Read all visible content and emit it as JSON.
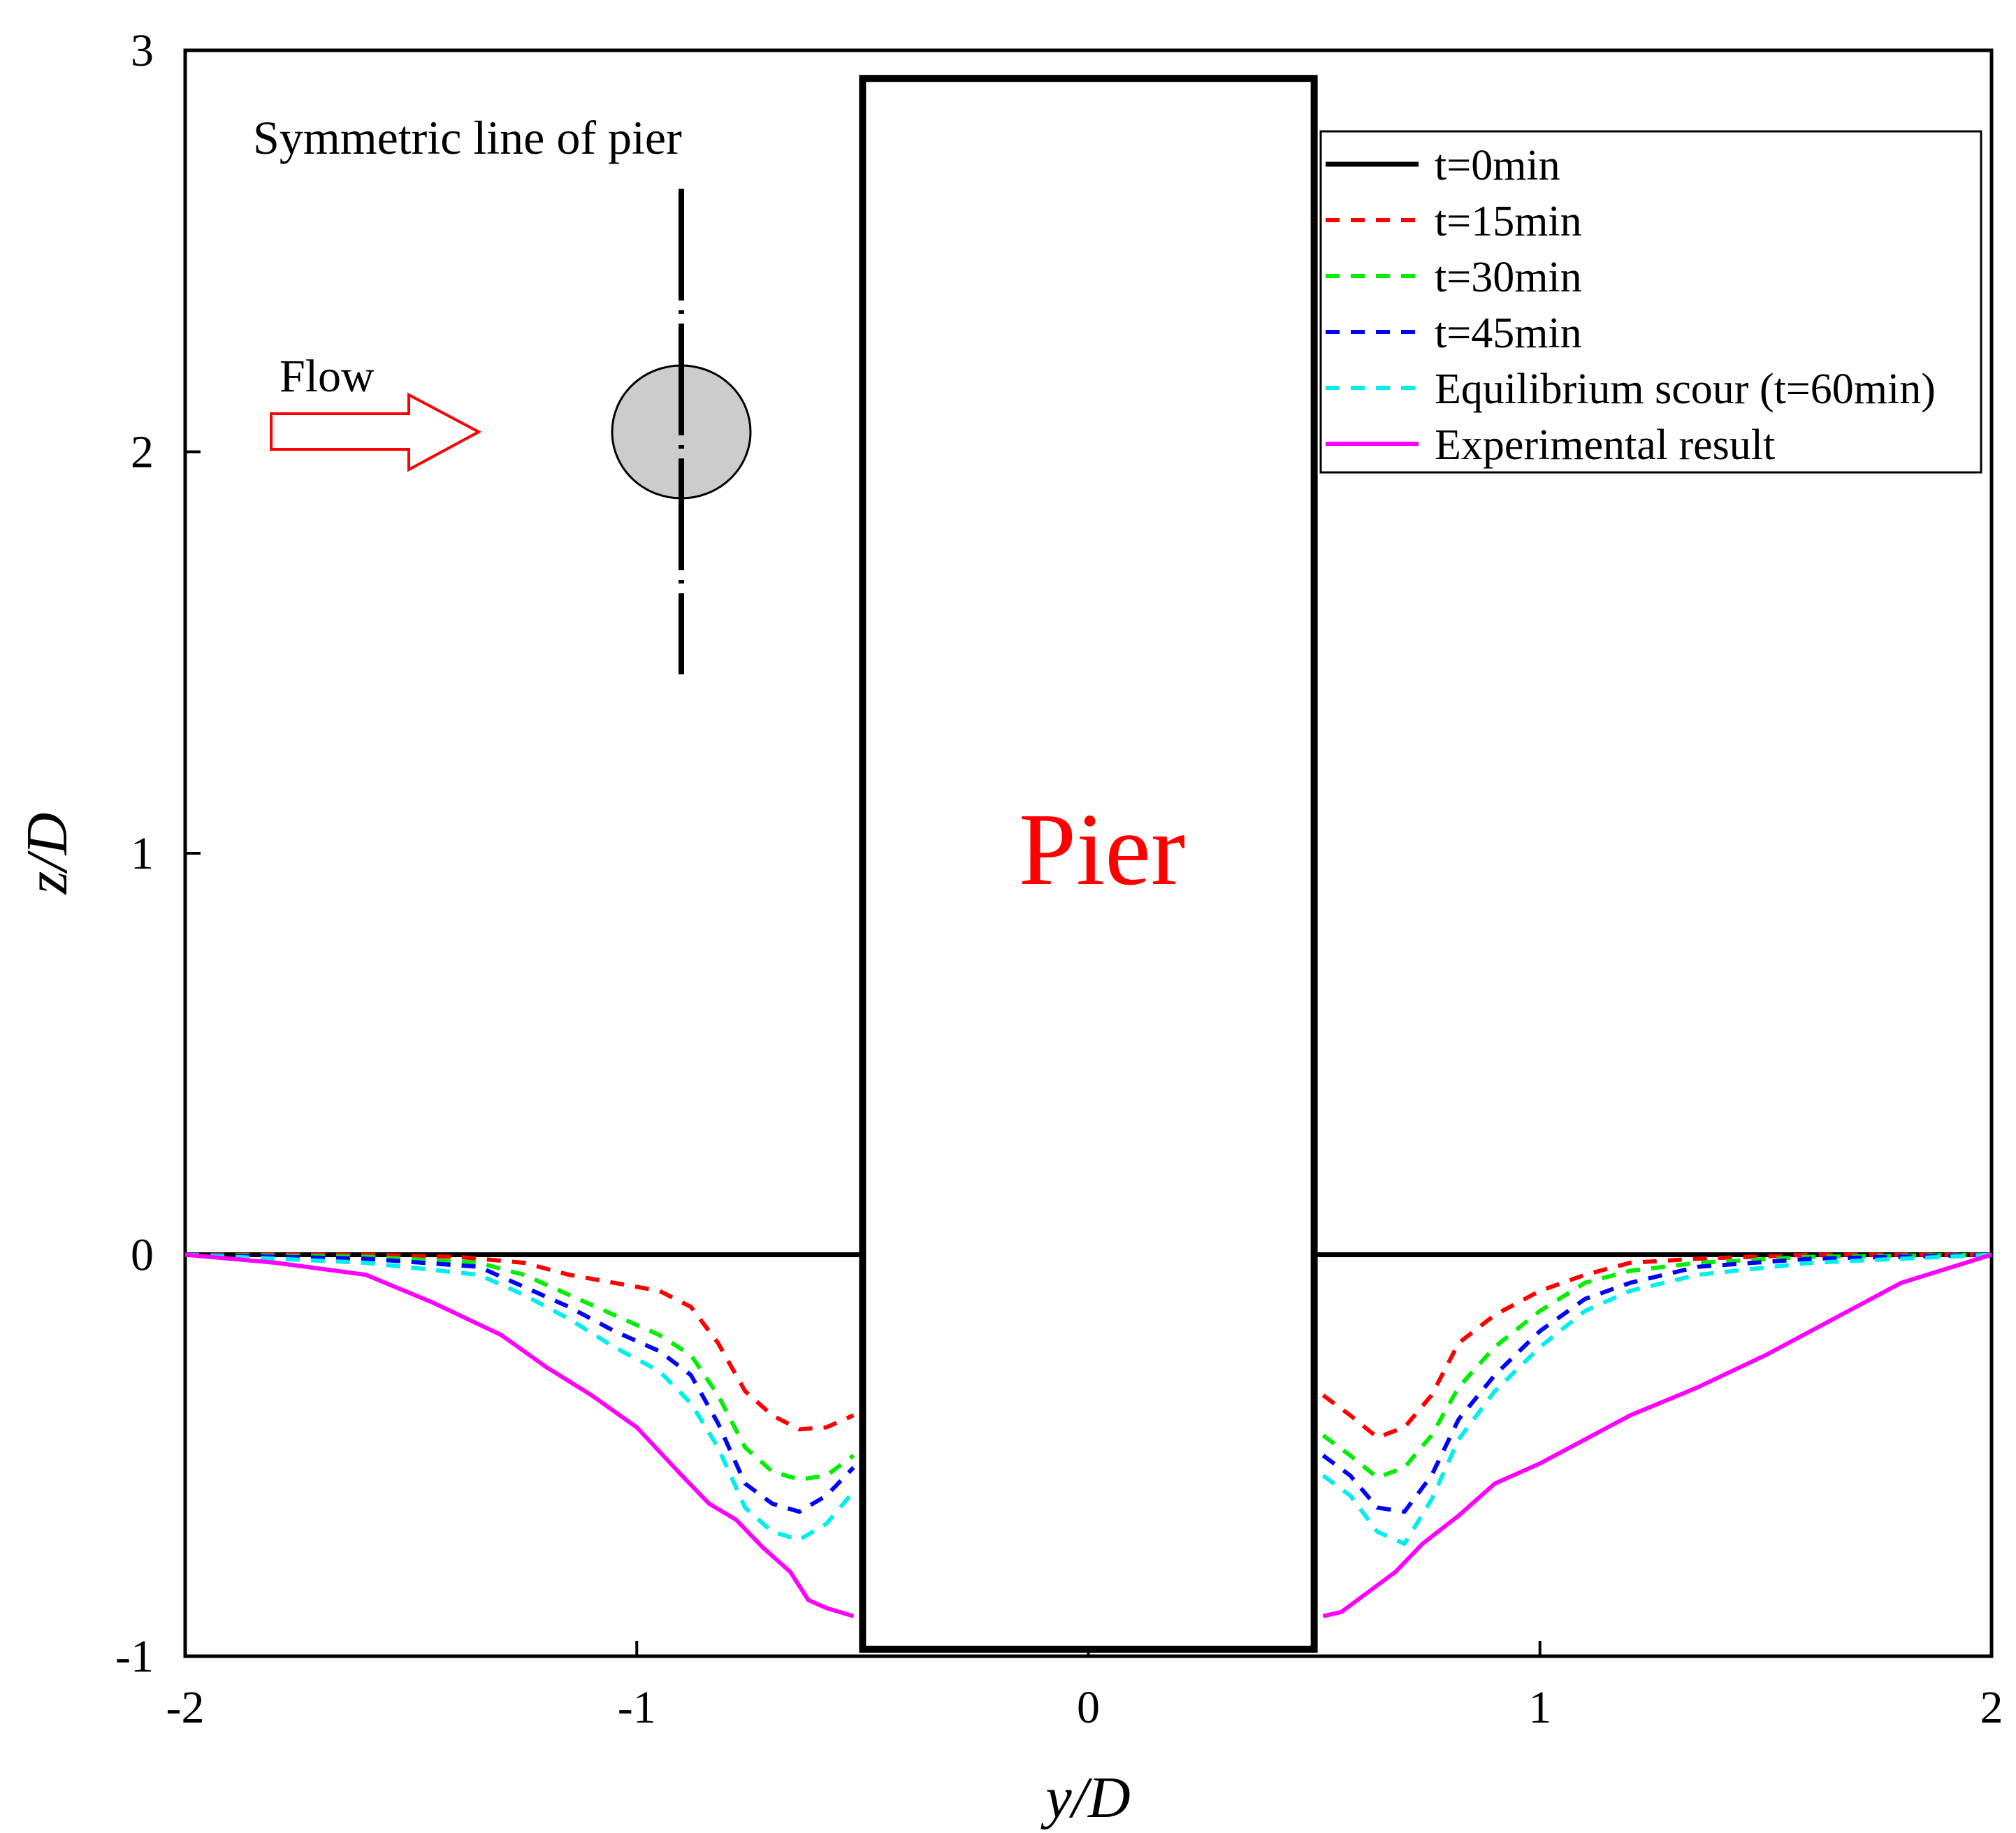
{
  "chart_data": {
    "type": "line",
    "title": "",
    "xlabel": "y/D",
    "ylabel": "z/D",
    "xlim": [
      -2,
      2
    ],
    "ylim": [
      -1,
      3
    ],
    "xticks": [
      -2,
      -1,
      0,
      1,
      2
    ],
    "yticks": [
      -1,
      0,
      1,
      2,
      3
    ],
    "x_tick_labels": [
      "-2",
      "-1",
      "0",
      "1",
      "2"
    ],
    "y_tick_labels": [
      "-1",
      "0",
      "1",
      "2",
      "3"
    ],
    "grid": false,
    "legend_position": "top-right",
    "pier": {
      "label": "Pier",
      "y_range": [
        -0.5,
        0.5
      ],
      "z_range": [
        -1,
        2.93
      ]
    },
    "annotations": {
      "flow_label": "Flow",
      "symmetric_label": "Symmetric line of pier"
    },
    "series": [
      {
        "name": "t=0min",
        "color": "#000000",
        "dash": "solid",
        "left": [
          [
            -2,
            0
          ],
          [
            -0.5,
            0
          ]
        ],
        "right": [
          [
            0.5,
            0
          ],
          [
            2,
            0
          ]
        ]
      },
      {
        "name": "t=15min",
        "color": "#ff0000",
        "dash": "dashed",
        "left": [
          [
            -2,
            0
          ],
          [
            -1.6,
            0
          ],
          [
            -1.4,
            -0.005
          ],
          [
            -1.25,
            -0.02
          ],
          [
            -1.15,
            -0.05
          ],
          [
            -1.05,
            -0.07
          ],
          [
            -0.95,
            -0.09
          ],
          [
            -0.88,
            -0.13
          ],
          [
            -0.82,
            -0.22
          ],
          [
            -0.76,
            -0.34
          ],
          [
            -0.7,
            -0.4
          ],
          [
            -0.64,
            -0.435
          ],
          [
            -0.58,
            -0.43
          ],
          [
            -0.52,
            -0.4
          ]
        ],
        "right": [
          [
            0.52,
            -0.35
          ],
          [
            0.58,
            -0.4
          ],
          [
            0.64,
            -0.455
          ],
          [
            0.7,
            -0.43
          ],
          [
            0.76,
            -0.35
          ],
          [
            0.82,
            -0.22
          ],
          [
            0.9,
            -0.15
          ],
          [
            1.0,
            -0.09
          ],
          [
            1.1,
            -0.05
          ],
          [
            1.2,
            -0.02
          ],
          [
            1.35,
            -0.01
          ],
          [
            1.6,
            0
          ],
          [
            2,
            0
          ]
        ]
      },
      {
        "name": "t=30min",
        "color": "#00ee00",
        "dash": "dashed",
        "left": [
          [
            -2,
            0
          ],
          [
            -1.6,
            -0.005
          ],
          [
            -1.35,
            -0.02
          ],
          [
            -1.25,
            -0.05
          ],
          [
            -1.15,
            -0.1
          ],
          [
            -1.05,
            -0.15
          ],
          [
            -0.95,
            -0.2
          ],
          [
            -0.88,
            -0.25
          ],
          [
            -0.82,
            -0.35
          ],
          [
            -0.76,
            -0.48
          ],
          [
            -0.7,
            -0.54
          ],
          [
            -0.64,
            -0.56
          ],
          [
            -0.58,
            -0.55
          ],
          [
            -0.52,
            -0.5
          ]
        ],
        "right": [
          [
            0.52,
            -0.45
          ],
          [
            0.58,
            -0.5
          ],
          [
            0.64,
            -0.555
          ],
          [
            0.7,
            -0.53
          ],
          [
            0.76,
            -0.45
          ],
          [
            0.82,
            -0.33
          ],
          [
            0.9,
            -0.23
          ],
          [
            1.0,
            -0.14
          ],
          [
            1.1,
            -0.07
          ],
          [
            1.2,
            -0.04
          ],
          [
            1.35,
            -0.02
          ],
          [
            1.6,
            -0.005
          ],
          [
            2,
            0
          ]
        ]
      },
      {
        "name": "t=45min",
        "color": "#0000ff",
        "dash": "dashed",
        "left": [
          [
            -2,
            0
          ],
          [
            -1.6,
            -0.01
          ],
          [
            -1.35,
            -0.03
          ],
          [
            -1.25,
            -0.08
          ],
          [
            -1.15,
            -0.13
          ],
          [
            -1.05,
            -0.19
          ],
          [
            -0.95,
            -0.24
          ],
          [
            -0.88,
            -0.3
          ],
          [
            -0.82,
            -0.42
          ],
          [
            -0.76,
            -0.57
          ],
          [
            -0.7,
            -0.62
          ],
          [
            -0.64,
            -0.64
          ],
          [
            -0.58,
            -0.6
          ],
          [
            -0.52,
            -0.53
          ]
        ],
        "right": [
          [
            0.52,
            -0.5
          ],
          [
            0.58,
            -0.55
          ],
          [
            0.64,
            -0.63
          ],
          [
            0.7,
            -0.64
          ],
          [
            0.76,
            -0.55
          ],
          [
            0.82,
            -0.41
          ],
          [
            0.9,
            -0.3
          ],
          [
            1.0,
            -0.19
          ],
          [
            1.1,
            -0.11
          ],
          [
            1.2,
            -0.07
          ],
          [
            1.35,
            -0.03
          ],
          [
            1.6,
            -0.01
          ],
          [
            2,
            0
          ]
        ]
      },
      {
        "name": "Equilibrium scour (t=60min)",
        "color": "#00eeee",
        "dash": "dashed",
        "left": [
          [
            -2,
            0
          ],
          [
            -1.6,
            -0.02
          ],
          [
            -1.35,
            -0.05
          ],
          [
            -1.25,
            -0.1
          ],
          [
            -1.15,
            -0.16
          ],
          [
            -1.05,
            -0.23
          ],
          [
            -0.95,
            -0.29
          ],
          [
            -0.88,
            -0.37
          ],
          [
            -0.82,
            -0.48
          ],
          [
            -0.76,
            -0.63
          ],
          [
            -0.7,
            -0.69
          ],
          [
            -0.64,
            -0.71
          ],
          [
            -0.58,
            -0.67
          ],
          [
            -0.52,
            -0.59
          ]
        ],
        "right": [
          [
            0.52,
            -0.55
          ],
          [
            0.58,
            -0.6
          ],
          [
            0.64,
            -0.69
          ],
          [
            0.7,
            -0.72
          ],
          [
            0.76,
            -0.61
          ],
          [
            0.82,
            -0.46
          ],
          [
            0.9,
            -0.34
          ],
          [
            1.0,
            -0.23
          ],
          [
            1.1,
            -0.14
          ],
          [
            1.2,
            -0.09
          ],
          [
            1.35,
            -0.05
          ],
          [
            1.6,
            -0.02
          ],
          [
            2,
            0
          ]
        ]
      },
      {
        "name": "Experimental result",
        "color": "#ff00ff",
        "dash": "solid",
        "left": [
          [
            -2,
            0
          ],
          [
            -1.8,
            -0.02
          ],
          [
            -1.6,
            -0.05
          ],
          [
            -1.45,
            -0.12
          ],
          [
            -1.3,
            -0.2
          ],
          [
            -1.2,
            -0.28
          ],
          [
            -1.1,
            -0.35
          ],
          [
            -1.0,
            -0.43
          ],
          [
            -0.9,
            -0.55
          ],
          [
            -0.84,
            -0.62
          ],
          [
            -0.78,
            -0.66
          ],
          [
            -0.72,
            -0.73
          ],
          [
            -0.66,
            -0.79
          ],
          [
            -0.62,
            -0.86
          ],
          [
            -0.58,
            -0.88
          ],
          [
            -0.52,
            -0.9
          ]
        ],
        "right": [
          [
            0.52,
            -0.9
          ],
          [
            0.56,
            -0.89
          ],
          [
            0.62,
            -0.84
          ],
          [
            0.68,
            -0.79
          ],
          [
            0.74,
            -0.72
          ],
          [
            0.82,
            -0.65
          ],
          [
            0.9,
            -0.57
          ],
          [
            1.0,
            -0.52
          ],
          [
            1.1,
            -0.46
          ],
          [
            1.2,
            -0.4
          ],
          [
            1.35,
            -0.33
          ],
          [
            1.5,
            -0.25
          ],
          [
            1.65,
            -0.16
          ],
          [
            1.8,
            -0.07
          ],
          [
            2,
            0
          ]
        ]
      }
    ]
  }
}
